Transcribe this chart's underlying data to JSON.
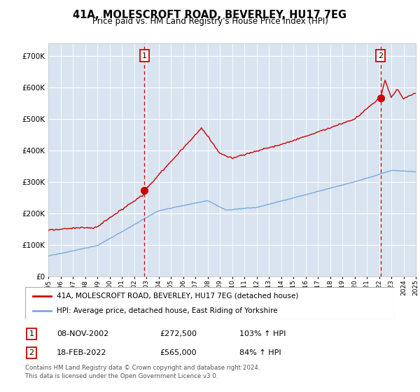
{
  "title": "41A, MOLESCROFT ROAD, BEVERLEY, HU17 7EG",
  "subtitle": "Price paid vs. HM Land Registry's House Price Index (HPI)",
  "ytick_values": [
    0,
    100000,
    200000,
    300000,
    400000,
    500000,
    600000,
    700000
  ],
  "ylim": [
    0,
    740000
  ],
  "xlim_year_start": 1995,
  "xlim_year_end": 2025,
  "plot_bg_color": "#d9e4f0",
  "grid_color": "#ffffff",
  "red_line_color": "#cc0000",
  "blue_line_color": "#7aaadd",
  "transaction1_year": 2002.85,
  "transaction1_price": 272500,
  "transaction2_year": 2022.12,
  "transaction2_price": 565000,
  "legend_entry1": "41A, MOLESCROFT ROAD, BEVERLEY, HU17 7EG (detached house)",
  "legend_entry2": "HPI: Average price, detached house, East Riding of Yorkshire",
  "footnote1": "Contains HM Land Registry data © Crown copyright and database right 2024.",
  "footnote2": "This data is licensed under the Open Government Licence v3.0.",
  "table_row1_num": "1",
  "table_row1_date": "08-NOV-2002",
  "table_row1_price": "£272,500",
  "table_row1_pct": "103% ↑ HPI",
  "table_row2_num": "2",
  "table_row2_date": "18-FEB-2022",
  "table_row2_price": "£565,000",
  "table_row2_pct": "84% ↑ HPI"
}
